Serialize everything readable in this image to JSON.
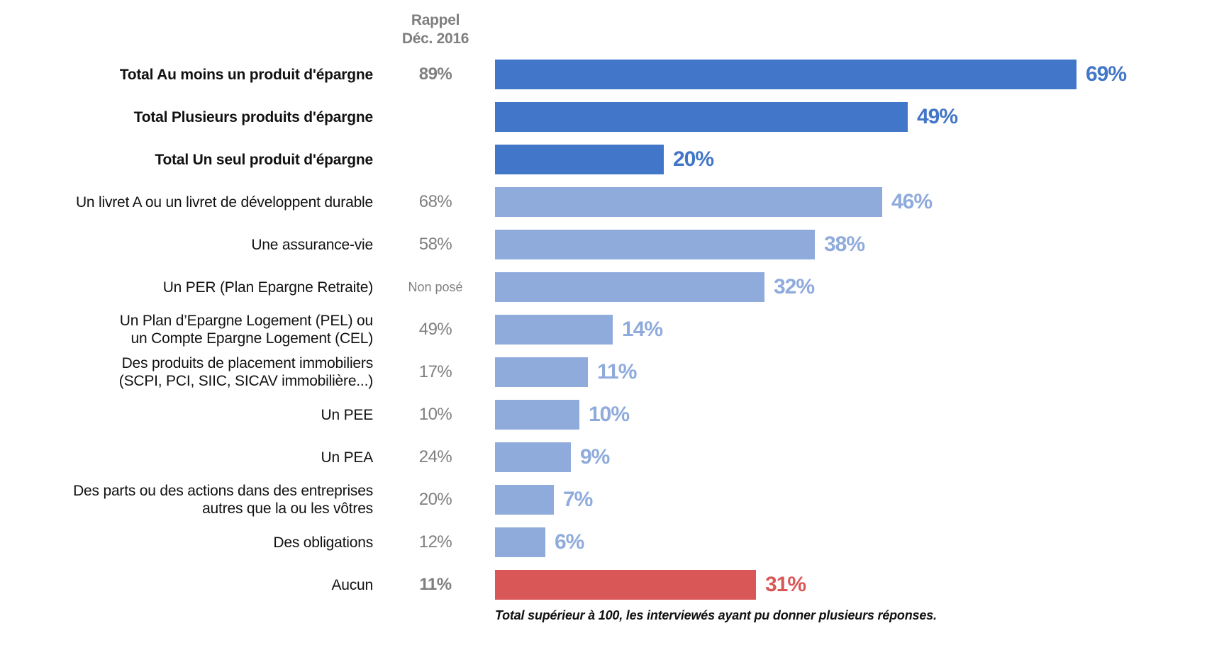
{
  "header": {
    "line1": "Rappel",
    "line2": "Déc. 2016"
  },
  "footnote": "Total supérieur à 100, les interviewés ayant pu donner plusieurs réponses.",
  "colors": {
    "dark_blue": "#4276C8",
    "light_blue": "#8FABDC",
    "red": "#D95757",
    "gray_text": "#7F7F7F",
    "label_text": "#111111"
  },
  "chart_data": {
    "type": "bar",
    "orientation": "horizontal",
    "value_unit": "%",
    "xlim": [
      0,
      100
    ],
    "grid": false,
    "legend": false,
    "column_header": "Rappel Déc. 2016",
    "rows": [
      {
        "label": "Total Au moins un produit d'épargne",
        "label_bold": true,
        "rappel": "89%",
        "rappel_bold": true,
        "rappel_small": false,
        "value": 69,
        "value_label": "69%",
        "color": "dark_blue"
      },
      {
        "label": "Total Plusieurs produits d'épargne",
        "label_bold": true,
        "rappel": "",
        "rappel_bold": false,
        "rappel_small": false,
        "value": 49,
        "value_label": "49%",
        "color": "dark_blue"
      },
      {
        "label": "Total Un seul produit d'épargne",
        "label_bold": true,
        "rappel": "",
        "rappel_bold": false,
        "rappel_small": false,
        "value": 20,
        "value_label": "20%",
        "color": "dark_blue"
      },
      {
        "label": "Un livret A ou un livret de développent durable",
        "label_bold": false,
        "rappel": "68%",
        "rappel_bold": false,
        "rappel_small": false,
        "value": 46,
        "value_label": "46%",
        "color": "light_blue"
      },
      {
        "label": "Une assurance-vie",
        "label_bold": false,
        "rappel": "58%",
        "rappel_bold": false,
        "rappel_small": false,
        "value": 38,
        "value_label": "38%",
        "color": "light_blue"
      },
      {
        "label": "Un PER (Plan Epargne Retraite)",
        "label_bold": false,
        "rappel": "Non posé",
        "rappel_bold": false,
        "rappel_small": true,
        "value": 32,
        "value_label": "32%",
        "color": "light_blue"
      },
      {
        "label": "Un Plan d’Epargne Logement (PEL) ou\nun Compte Epargne Logement (CEL)",
        "label_bold": false,
        "rappel": "49%",
        "rappel_bold": false,
        "rappel_small": false,
        "value": 14,
        "value_label": "14%",
        "color": "light_blue"
      },
      {
        "label": "Des produits de placement immobiliers\n(SCPI, PCI, SIIC, SICAV immobilière...)",
        "label_bold": false,
        "rappel": "17%",
        "rappel_bold": false,
        "rappel_small": false,
        "value": 11,
        "value_label": "11%",
        "color": "light_blue"
      },
      {
        "label": "Un PEE",
        "label_bold": false,
        "rappel": "10%",
        "rappel_bold": false,
        "rappel_small": false,
        "value": 10,
        "value_label": "10%",
        "color": "light_blue"
      },
      {
        "label": "Un PEA",
        "label_bold": false,
        "rappel": "24%",
        "rappel_bold": false,
        "rappel_small": false,
        "value": 9,
        "value_label": "9%",
        "color": "light_blue"
      },
      {
        "label": "Des parts ou des actions dans des entreprises\nautres que la ou les vôtres",
        "label_bold": false,
        "rappel": "20%",
        "rappel_bold": false,
        "rappel_small": false,
        "value": 7,
        "value_label": "7%",
        "color": "light_blue"
      },
      {
        "label": "Des obligations",
        "label_bold": false,
        "rappel": "12%",
        "rappel_bold": false,
        "rappel_small": false,
        "value": 6,
        "value_label": "6%",
        "color": "light_blue"
      },
      {
        "label": "Aucun",
        "label_bold": false,
        "rappel": "11%",
        "rappel_bold": true,
        "rappel_small": false,
        "value": 31,
        "value_label": "31%",
        "color": "red"
      }
    ]
  }
}
